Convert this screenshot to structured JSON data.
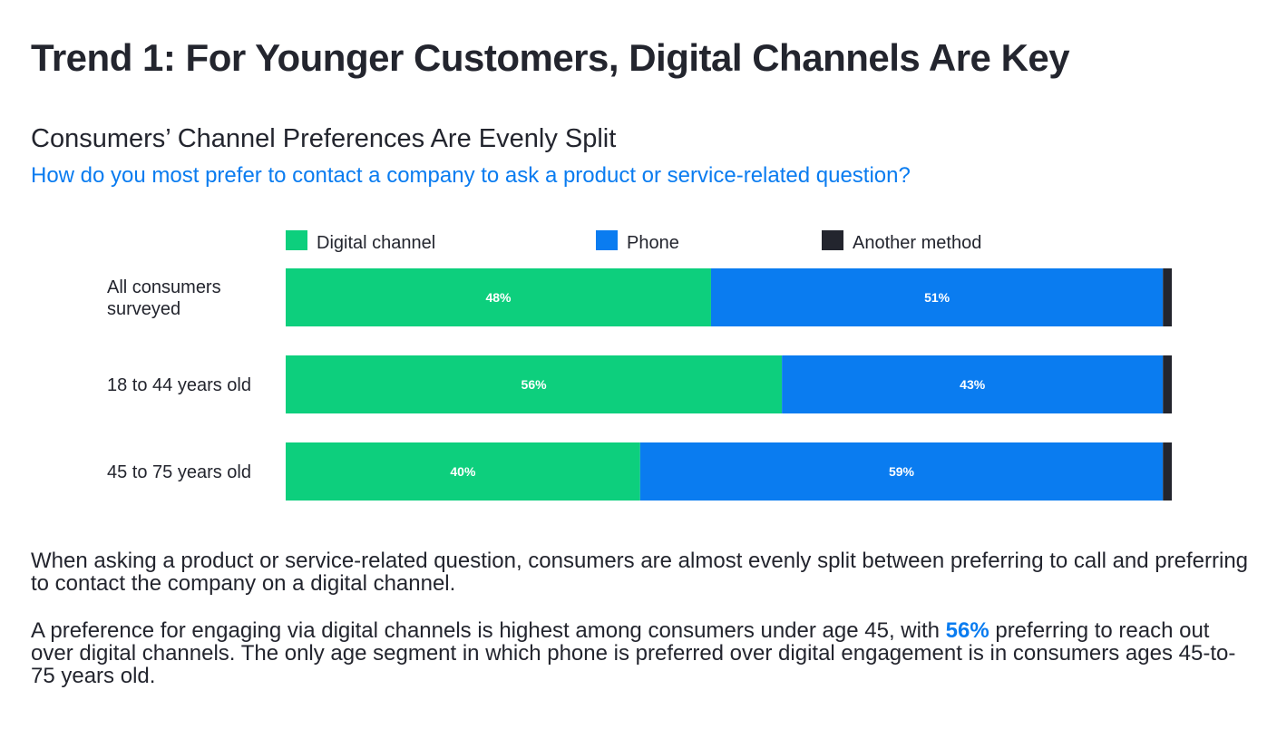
{
  "heading": "Trend 1: For Younger Customers, Digital Channels Are Key",
  "paragraphs": {
    "p1": "When asking a product or service-related question, consumers are almost evenly split between preferring to call and preferring to contact the company on a digital channel.",
    "p2_before": "A preference for engaging via digital channels is highest among consumers under age 45, with ",
    "p2_highlight": "56%",
    "p2_after": " preferring to reach out over digital channels. The only age segment in which phone is preferred over digital engagement is in consumers ages 45-to-75 years old."
  },
  "chart_data": {
    "type": "bar",
    "orientation": "horizontal",
    "stacked": true,
    "title": "Consumers’ Channel Preferences Are Evenly Split",
    "subtitle": "How do you most prefer to contact a company to ask a product or service-related question?",
    "categories": [
      [
        "All consumers",
        "surveyed"
      ],
      [
        "18 to 44 years old"
      ],
      [
        "45 to 75 years old"
      ]
    ],
    "series": [
      {
        "name": "Digital channel",
        "color": "#0dcf7d",
        "values": [
          48,
          56,
          40
        ],
        "labels": [
          "48%",
          "56%",
          "40%"
        ]
      },
      {
        "name": "Phone",
        "color": "#0a7cf0",
        "values": [
          51,
          43,
          59
        ],
        "labels": [
          "51%",
          "43%",
          "59%"
        ]
      },
      {
        "name": "Another method",
        "color": "#23252e",
        "values": [
          1,
          1,
          1
        ],
        "labels": [
          "",
          "",
          ""
        ]
      }
    ],
    "xlim": [
      0,
      100
    ],
    "legend_position": "top",
    "grid": false
  }
}
